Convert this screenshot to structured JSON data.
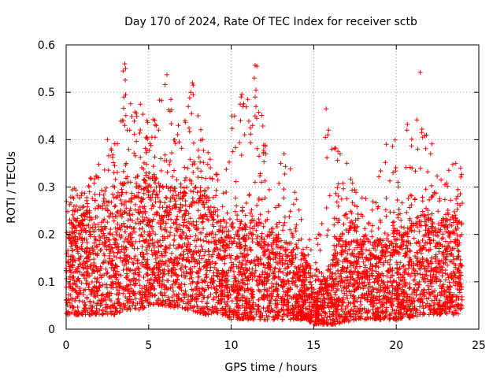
{
  "chart_data": {
    "type": "scatter",
    "title": "Day 170 of 2024, Rate Of TEC Index for receiver sctb",
    "xlabel": "GPS time / hours",
    "ylabel": "ROTI / TECUs",
    "xlim": [
      0,
      25
    ],
    "ylim": [
      0,
      0.6
    ],
    "xticks": [
      0,
      5,
      10,
      15,
      20,
      25
    ],
    "yticks": [
      0,
      0.1,
      0.2,
      0.3,
      0.4,
      0.5,
      0.6
    ],
    "xtick_labels": [
      "0",
      "5",
      "10",
      "15",
      "20",
      "25"
    ],
    "ytick_labels": [
      "0",
      "0.1",
      "0.2",
      "0.3",
      "0.4",
      "0.5",
      "0.6"
    ],
    "grid": true,
    "marker": "+",
    "series": [
      {
        "color": "#ff0000",
        "x_range": [
          0,
          24
        ],
        "envelope": [
          {
            "x": 0.0,
            "lo": 0.03,
            "typical_hi": 0.22,
            "peak": 0.3
          },
          {
            "x": 1.0,
            "lo": 0.03,
            "typical_hi": 0.24,
            "peak": 0.3
          },
          {
            "x": 2.0,
            "lo": 0.03,
            "typical_hi": 0.26,
            "peak": 0.36
          },
          {
            "x": 3.0,
            "lo": 0.03,
            "typical_hi": 0.28,
            "peak": 0.4
          },
          {
            "x": 3.5,
            "lo": 0.04,
            "typical_hi": 0.3,
            "peak": 0.56
          },
          {
            "x": 4.5,
            "lo": 0.04,
            "typical_hi": 0.3,
            "peak": 0.47
          },
          {
            "x": 5.0,
            "lo": 0.05,
            "typical_hi": 0.32,
            "peak": 0.44
          },
          {
            "x": 6.0,
            "lo": 0.05,
            "typical_hi": 0.3,
            "peak": 0.54
          },
          {
            "x": 7.0,
            "lo": 0.04,
            "typical_hi": 0.3,
            "peak": 0.42
          },
          {
            "x": 7.5,
            "lo": 0.04,
            "typical_hi": 0.31,
            "peak": 0.52
          },
          {
            "x": 8.5,
            "lo": 0.03,
            "typical_hi": 0.28,
            "peak": 0.4
          },
          {
            "x": 9.5,
            "lo": 0.03,
            "typical_hi": 0.22,
            "peak": 0.3
          },
          {
            "x": 10.0,
            "lo": 0.02,
            "typical_hi": 0.22,
            "peak": 0.45
          },
          {
            "x": 11.5,
            "lo": 0.02,
            "typical_hi": 0.23,
            "peak": 0.56
          },
          {
            "x": 12.5,
            "lo": 0.02,
            "typical_hi": 0.2,
            "peak": 0.3
          },
          {
            "x": 13.5,
            "lo": 0.02,
            "typical_hi": 0.18,
            "peak": 0.37
          },
          {
            "x": 14.5,
            "lo": 0.02,
            "typical_hi": 0.15,
            "peak": 0.25
          },
          {
            "x": 15.0,
            "lo": 0.01,
            "typical_hi": 0.09,
            "peak": 0.13
          },
          {
            "x": 15.8,
            "lo": 0.01,
            "typical_hi": 0.12,
            "peak": 0.46
          },
          {
            "x": 16.5,
            "lo": 0.01,
            "typical_hi": 0.2,
            "peak": 0.38
          },
          {
            "x": 17.5,
            "lo": 0.02,
            "typical_hi": 0.22,
            "peak": 0.3
          },
          {
            "x": 18.5,
            "lo": 0.02,
            "typical_hi": 0.18,
            "peak": 0.27
          },
          {
            "x": 19.5,
            "lo": 0.02,
            "typical_hi": 0.2,
            "peak": 0.39
          },
          {
            "x": 20.5,
            "lo": 0.02,
            "typical_hi": 0.22,
            "peak": 0.42
          },
          {
            "x": 21.5,
            "lo": 0.03,
            "typical_hi": 0.24,
            "peak": 0.54
          },
          {
            "x": 22.5,
            "lo": 0.03,
            "typical_hi": 0.22,
            "peak": 0.33
          },
          {
            "x": 23.5,
            "lo": 0.03,
            "typical_hi": 0.24,
            "peak": 0.35
          },
          {
            "x": 24.0,
            "lo": 0.03,
            "typical_hi": 0.22,
            "peak": 0.34
          }
        ],
        "outliers": [
          [
            3.45,
            0.545
          ],
          [
            3.55,
            0.56
          ],
          [
            3.6,
            0.55
          ],
          [
            3.5,
            0.49
          ],
          [
            3.6,
            0.495
          ],
          [
            3.4,
            0.44
          ],
          [
            3.55,
            0.43
          ],
          [
            3.7,
            0.42
          ],
          [
            3.85,
            0.42
          ],
          [
            4.5,
            0.475
          ],
          [
            4.9,
            0.44
          ],
          [
            6.1,
            0.537
          ],
          [
            6.35,
            0.485
          ],
          [
            6.3,
            0.46
          ],
          [
            7.4,
            0.47
          ],
          [
            7.65,
            0.52
          ],
          [
            7.7,
            0.515
          ],
          [
            7.55,
            0.5
          ],
          [
            7.7,
            0.495
          ],
          [
            7.6,
            0.455
          ],
          [
            7.2,
            0.44
          ],
          [
            6.8,
            0.43
          ],
          [
            5.6,
            0.42
          ],
          [
            2.5,
            0.4
          ],
          [
            10.05,
            0.45
          ],
          [
            10.2,
            0.45
          ],
          [
            10.6,
            0.49
          ],
          [
            10.55,
            0.475
          ],
          [
            10.7,
            0.47
          ],
          [
            11.0,
            0.485
          ],
          [
            11.45,
            0.557
          ],
          [
            11.55,
            0.555
          ],
          [
            11.4,
            0.53
          ],
          [
            11.5,
            0.505
          ],
          [
            11.45,
            0.49
          ],
          [
            11.5,
            0.47
          ],
          [
            11.45,
            0.45
          ],
          [
            11.3,
            0.43
          ],
          [
            15.75,
            0.465
          ],
          [
            15.9,
            0.42
          ],
          [
            15.85,
            0.41
          ],
          [
            16.1,
            0.38
          ],
          [
            16.6,
            0.37
          ],
          [
            17.0,
            0.35
          ],
          [
            19.4,
            0.39
          ],
          [
            20.65,
            0.42
          ],
          [
            21.45,
            0.542
          ],
          [
            21.6,
            0.405
          ],
          [
            21.3,
            0.38
          ],
          [
            13.0,
            0.35
          ],
          [
            13.2,
            0.37
          ],
          [
            12.1,
            0.37
          ],
          [
            23.6,
            0.35
          ],
          [
            23.9,
            0.34
          ]
        ]
      }
    ]
  }
}
